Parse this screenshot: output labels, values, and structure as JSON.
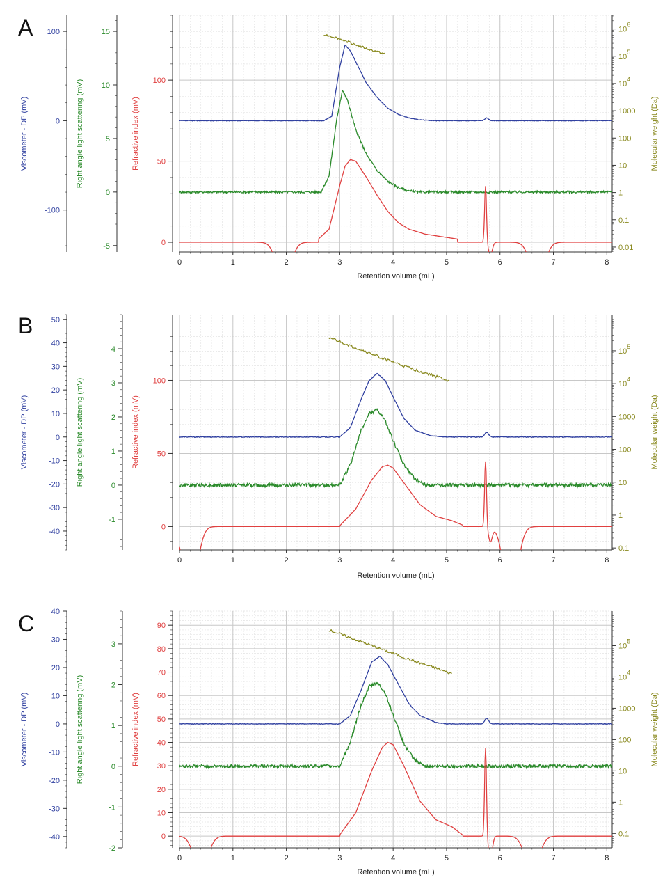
{
  "figure": {
    "separators": [
      "A-B",
      "B-C"
    ]
  },
  "colors": {
    "visc": "#3040a0",
    "rals": "#2a8a2a",
    "ri": "#e04040",
    "mw": "#8a8a20",
    "grid": "#c8c8c8",
    "axis": "#333333"
  },
  "chart_data": [
    {
      "panel_label": "A",
      "type": "line",
      "xlabel": "Retention volume (mL)",
      "xlim": [
        0,
        8.1
      ],
      "xticks": [
        0,
        1,
        2,
        3,
        4,
        5,
        6,
        7,
        8
      ],
      "axes": {
        "visc": {
          "label": "Viscometer - DP (mV)",
          "lim": [
            -147,
            118
          ],
          "ticks": [
            -100,
            0,
            100
          ]
        },
        "rals": {
          "label": "Right angle light scattering (mV)",
          "lim": [
            -5.6,
            16.5
          ],
          "ticks": [
            -5,
            0,
            5,
            10,
            15
          ]
        },
        "ri": {
          "label": "Refractive index (mV)",
          "lim": [
            -6,
            140
          ],
          "ticks": [
            0,
            50,
            100
          ]
        },
        "mw": {
          "label": "Molecular weight (Da)",
          "log": true,
          "lim": [
            -2.18,
            6.5
          ],
          "ticks": [
            {
              "exp": -2,
              "text": "0.01"
            },
            {
              "exp": -1,
              "text": "0.1"
            },
            {
              "exp": 0,
              "text": "1"
            },
            {
              "exp": 1,
              "text": "10"
            },
            {
              "exp": 2,
              "text": "100"
            },
            {
              "exp": 3,
              "text": "1000"
            },
            {
              "exp": 4,
              "text": "10",
              "sup": "4"
            },
            {
              "exp": 5,
              "text": "10",
              "sup": "5"
            },
            {
              "exp": 6,
              "text": "10",
              "sup": "6"
            }
          ]
        }
      },
      "series": [
        {
          "name": "Viscometer - DP",
          "axis": "visc",
          "baseline": 0,
          "x": [
            2.7,
            2.85,
            3.0,
            3.1,
            3.2,
            3.35,
            3.5,
            3.7,
            3.9,
            4.1,
            4.3,
            4.5,
            4.8
          ],
          "y": [
            0,
            5,
            60,
            85,
            78,
            60,
            42,
            26,
            14,
            7,
            3,
            1,
            0
          ],
          "bumps": [
            {
              "x": 5.75,
              "y": 3
            }
          ],
          "noise": 0.3
        },
        {
          "name": "Right angle light scattering",
          "axis": "rals",
          "baseline": 0,
          "x": [
            2.65,
            2.8,
            2.95,
            3.05,
            3.15,
            3.3,
            3.5,
            3.7,
            3.9,
            4.1,
            4.3,
            4.5
          ],
          "y": [
            0,
            1.5,
            7.0,
            9.5,
            8.5,
            5.8,
            3.5,
            2.0,
            1.0,
            0.4,
            0.1,
            0
          ],
          "noise": 0.1
        },
        {
          "name": "Refractive index",
          "axis": "ri",
          "baseline": 0,
          "x": [
            2.6,
            2.8,
            3.0,
            3.1,
            3.2,
            3.3,
            3.5,
            3.7,
            3.9,
            4.1,
            4.3,
            4.6,
            5.0,
            5.2
          ],
          "y": [
            2,
            8,
            35,
            47,
            51,
            50,
            40,
            29,
            19,
            12,
            8,
            5,
            3,
            2
          ],
          "spike": {
            "x": 5.75,
            "top": 35,
            "bottom": -8
          },
          "dips": [
            {
              "x": 1.95,
              "y": -8
            },
            {
              "x": 6.7,
              "y": -8
            }
          ],
          "noise": 0
        },
        {
          "name": "Molecular weight",
          "axis": "mw",
          "x": [
            2.7,
            2.9,
            3.2,
            3.5,
            3.85
          ],
          "y": [
            5.8,
            5.7,
            5.5,
            5.28,
            5.08
          ],
          "noise": 0.04
        }
      ]
    },
    {
      "panel_label": "B",
      "type": "line",
      "xlabel": "Retention volume (mL)",
      "xlim": [
        0,
        8.1
      ],
      "xticks": [
        0,
        1,
        2,
        3,
        4,
        5,
        6,
        7,
        8
      ],
      "axes": {
        "visc": {
          "label": "Viscometer - DP (mV)",
          "lim": [
            -48,
            52
          ],
          "ticks": [
            -40,
            -30,
            -20,
            -10,
            0,
            10,
            20,
            30,
            40,
            50
          ]
        },
        "rals": {
          "label": "Right angle light scattering (mV)",
          "lim": [
            -1.9,
            5.0
          ],
          "ticks": [
            -1,
            0,
            1,
            2,
            3,
            4
          ]
        },
        "ri": {
          "label": "Refractive index (mV)",
          "lim": [
            -16,
            145
          ],
          "ticks": [
            0,
            50,
            100
          ]
        },
        "mw": {
          "label": "Molecular weight (Da)",
          "log": true,
          "lim": [
            -1.06,
            6.1
          ],
          "ticks": [
            {
              "exp": -1,
              "text": "0.1"
            },
            {
              "exp": 0,
              "text": "1"
            },
            {
              "exp": 1,
              "text": "10"
            },
            {
              "exp": 2,
              "text": "100"
            },
            {
              "exp": 3,
              "text": "1000"
            },
            {
              "exp": 4,
              "text": "10",
              "sup": "4"
            },
            {
              "exp": 5,
              "text": "10",
              "sup": "5"
            }
          ]
        }
      },
      "series": [
        {
          "name": "Viscometer - DP",
          "axis": "visc",
          "baseline": 0,
          "x": [
            3.0,
            3.2,
            3.4,
            3.55,
            3.7,
            3.85,
            4.0,
            4.2,
            4.4,
            4.7,
            5.0
          ],
          "y": [
            0,
            4,
            16,
            24,
            27,
            24,
            17,
            8,
            3,
            0.5,
            0
          ],
          "bumps": [
            {
              "x": 5.75,
              "y": 2
            }
          ],
          "noise": 0.15
        },
        {
          "name": "Right angle light scattering",
          "axis": "rals",
          "baseline": 0,
          "x": [
            3.0,
            3.2,
            3.4,
            3.55,
            3.7,
            3.85,
            4.0,
            4.2,
            4.4,
            4.6
          ],
          "y": [
            0,
            0.6,
            1.6,
            2.1,
            2.2,
            1.9,
            1.3,
            0.6,
            0.2,
            0
          ],
          "noise": 0.05
        },
        {
          "name": "Refractive index",
          "axis": "ri",
          "baseline": 0,
          "x": [
            3.0,
            3.3,
            3.6,
            3.8,
            3.9,
            4.0,
            4.2,
            4.5,
            4.8,
            5.1,
            5.3
          ],
          "y": [
            0.5,
            12,
            32,
            41,
            42,
            40,
            30,
            15,
            7,
            4,
            1
          ],
          "spike": {
            "x": 5.75,
            "top": 45,
            "bottom": -10
          },
          "dips": [
            {
              "x": 0.2,
              "y": -16
            },
            {
              "x": 6.2,
              "y": -16
            }
          ],
          "noise": 0
        },
        {
          "name": "Molecular weight",
          "axis": "mw",
          "x": [
            2.8,
            3.2,
            3.6,
            4.0,
            4.4,
            4.8,
            5.05
          ],
          "y": [
            5.4,
            5.15,
            4.9,
            4.65,
            4.42,
            4.22,
            4.08
          ],
          "noise": 0.04
        }
      ]
    },
    {
      "panel_label": "C",
      "type": "line",
      "xlabel": "Retention volume (mL)",
      "xlim": [
        0,
        8.1
      ],
      "xticks": [
        0,
        1,
        2,
        3,
        4,
        5,
        6,
        7,
        8
      ],
      "axes": {
        "visc": {
          "label": "Viscometer - DP (mV)",
          "lim": [
            -44,
            40
          ],
          "ticks": [
            -40,
            -30,
            -20,
            -10,
            0,
            10,
            20,
            30,
            40
          ]
        },
        "rals": {
          "label": "Right angle light scattering (mV)",
          "lim": [
            -2.0,
            3.8
          ],
          "ticks": [
            -2,
            -1,
            0,
            1,
            2,
            3
          ]
        },
        "ri": {
          "label": "Refractive index (mV)",
          "lim": [
            -5,
            96
          ],
          "ticks": [
            0,
            10,
            20,
            30,
            40,
            50,
            60,
            70,
            80,
            90
          ]
        },
        "mw": {
          "label": "Molecular weight (Da)",
          "log": true,
          "lim": [
            -1.46,
            6.1
          ],
          "ticks": [
            {
              "exp": -1,
              "text": "0.1"
            },
            {
              "exp": 0,
              "text": "1"
            },
            {
              "exp": 1,
              "text": "10"
            },
            {
              "exp": 2,
              "text": "100"
            },
            {
              "exp": 3,
              "text": "1000"
            },
            {
              "exp": 4,
              "text": "10",
              "sup": "4"
            },
            {
              "exp": 5,
              "text": "10",
              "sup": "5"
            }
          ]
        }
      },
      "series": [
        {
          "name": "Viscometer - DP",
          "axis": "visc",
          "baseline": 0,
          "x": [
            3.0,
            3.2,
            3.4,
            3.6,
            3.75,
            3.9,
            4.1,
            4.3,
            4.5,
            4.8,
            5.0
          ],
          "y": [
            0,
            3,
            12,
            22,
            24,
            21,
            14,
            7,
            3,
            0.5,
            0
          ],
          "bumps": [
            {
              "x": 5.75,
              "y": 2
            }
          ],
          "noise": 0.1
        },
        {
          "name": "Right angle light scattering",
          "axis": "rals",
          "baseline": 0,
          "x": [
            3.0,
            3.2,
            3.4,
            3.55,
            3.7,
            3.85,
            4.0,
            4.2,
            4.4,
            4.6
          ],
          "y": [
            0,
            0.6,
            1.5,
            1.95,
            2.05,
            1.8,
            1.25,
            0.55,
            0.15,
            0
          ],
          "noise": 0.04
        },
        {
          "name": "Refractive index",
          "axis": "ri",
          "baseline": 0,
          "x": [
            3.0,
            3.3,
            3.6,
            3.8,
            3.9,
            4.0,
            4.2,
            4.5,
            4.8,
            5.1,
            5.3
          ],
          "y": [
            0.5,
            10,
            28,
            38,
            40,
            39,
            30,
            15,
            7,
            4,
            0.5
          ],
          "spike": {
            "x": 5.75,
            "top": 38,
            "bottom": -10
          },
          "dips": [
            {
              "x": 0.4,
              "y": -5
            },
            {
              "x": 6.6,
              "y": -5
            }
          ],
          "noise": 0
        },
        {
          "name": "Molecular weight",
          "axis": "mw",
          "x": [
            2.8,
            3.2,
            3.6,
            4.0,
            4.4,
            4.8,
            5.1
          ],
          "y": [
            5.5,
            5.25,
            5.0,
            4.75,
            4.5,
            4.28,
            4.1
          ],
          "noise": 0.04
        }
      ]
    }
  ]
}
